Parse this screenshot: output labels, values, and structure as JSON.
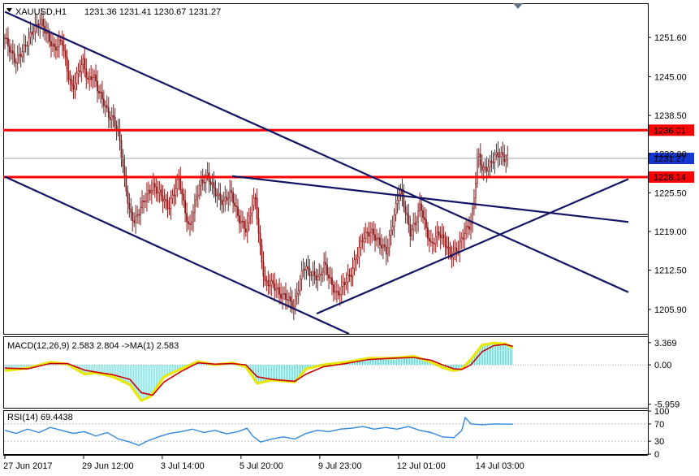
{
  "header": {
    "symbol": "XAUUSD,H1",
    "ohlc": "1231.36 1231.41 1230.67 1231.27"
  },
  "colors": {
    "bull": "#8b1a1a",
    "bear": "#8b1a1a",
    "trendline": "#141464",
    "level": "#ff0000",
    "price_label_bg": "#1536d1",
    "macd_hist": "#66cccc",
    "macd_signal": "#cc0000",
    "macd_line": "#e8e800",
    "rsi": "#3388dd"
  },
  "chart_data": [
    {
      "type": "candlestick",
      "name": "price",
      "ylim": [
        1201.8,
        1257.2
      ],
      "y_ticks": [
        "1251.60",
        "1245.00",
        "1238.50",
        "1232.00",
        "1225.50",
        "1219.00",
        "1212.50",
        "1205.90"
      ],
      "y_tick_values": [
        1251.6,
        1245.0,
        1238.5,
        1232.0,
        1225.5,
        1219.0,
        1212.5,
        1205.9
      ],
      "x_labels": [
        "27 Jun 2017",
        "29 Jun 12:00",
        "3 Jul 14:00",
        "5 Jul 20:00",
        "9 Jul 23:00",
        "12 Jul 01:00",
        "14 Jul 03:00"
      ],
      "x_label_index": [
        0,
        48,
        96,
        144,
        192,
        240,
        288
      ],
      "bars": 316,
      "current_price": "1231.27",
      "current_price_value": 1231.27,
      "levels": [
        {
          "label": "1236.01",
          "value": 1236.01
        },
        {
          "label": "1228.14",
          "value": 1228.14
        }
      ],
      "close_path": [
        [
          0,
          1251.5
        ],
        [
          8,
          1247.5
        ],
        [
          15,
          1249.8
        ],
        [
          22,
          1253.0
        ],
        [
          28,
          1254.2
        ],
        [
          33,
          1251.8
        ],
        [
          38,
          1249.6
        ],
        [
          44,
          1251.2
        ],
        [
          48,
          1246.0
        ],
        [
          52,
          1242.8
        ],
        [
          56,
          1245.5
        ],
        [
          60,
          1247.6
        ],
        [
          64,
          1244.2
        ],
        [
          68,
          1245.4
        ],
        [
          72,
          1242.6
        ],
        [
          76,
          1240.8
        ],
        [
          80,
          1238.4
        ],
        [
          84,
          1237.8
        ],
        [
          88,
          1235.0
        ],
        [
          92,
          1228.0
        ],
        [
          96,
          1222.2
        ],
        [
          100,
          1220.6
        ],
        [
          104,
          1222.8
        ],
        [
          108,
          1224.6
        ],
        [
          114,
          1226.6
        ],
        [
          120,
          1225.2
        ],
        [
          126,
          1223.0
        ],
        [
          130,
          1225.4
        ],
        [
          134,
          1228.0
        ],
        [
          138,
          1223.2
        ],
        [
          142,
          1219.2
        ],
        [
          146,
          1223.6
        ],
        [
          150,
          1226.8
        ],
        [
          156,
          1228.4
        ],
        [
          162,
          1225.6
        ],
        [
          168,
          1223.8
        ],
        [
          174,
          1225.6
        ],
        [
          180,
          1221.2
        ],
        [
          186,
          1219.2
        ],
        [
          190,
          1223.4
        ],
        [
          193,
          1224.6
        ],
        [
          196,
          1217.0
        ],
        [
          200,
          1210.4
        ],
        [
          206,
          1210.2
        ],
        [
          212,
          1208.4
        ],
        [
          218,
          1207.8
        ],
        [
          222,
          1206.2
        ],
        [
          226,
          1209.6
        ],
        [
          230,
          1213.2
        ],
        [
          236,
          1211.8
        ],
        [
          242,
          1211.2
        ],
        [
          246,
          1213.6
        ],
        [
          252,
          1209.8
        ],
        [
          256,
          1208.2
        ],
        [
          262,
          1210.6
        ],
        [
          266,
          1211.6
        ],
        [
          272,
          1215.6
        ],
        [
          276,
          1218.2
        ],
        [
          282,
          1219.0
        ],
        [
          288,
          1217.2
        ],
        [
          294,
          1215.6
        ],
        [
          300,
          1222.0
        ],
        [
          304,
          1226.4
        ],
        [
          308,
          1222.8
        ],
        [
          312,
          1218.8
        ],
        [
          316,
          1220.4
        ],
        [
          320,
          1223.6
        ],
        [
          324,
          1219.6
        ],
        [
          328,
          1216.6
        ],
        [
          334,
          1218.8
        ],
        [
          338,
          1217.6
        ],
        [
          343,
          1215.0
        ],
        [
          349,
          1216.2
        ],
        [
          354,
          1219.0
        ],
        [
          359,
          1220.4
        ],
        [
          362,
          1226.4
        ],
        [
          364,
          1232.2
        ],
        [
          368,
          1229.2
        ],
        [
          373,
          1230.0
        ],
        [
          377,
          1231.6
        ],
        [
          381,
          1232.0
        ],
        [
          385,
          1231.2
        ],
        [
          387,
          1231.27
        ]
      ],
      "trendlines": [
        {
          "from": [
            0,
            1255.9
          ],
          "to": [
            480,
            1208.8
          ]
        },
        {
          "from": [
            0,
            1228.2
          ],
          "to": [
            265,
            1201.8
          ]
        },
        {
          "from": [
            175,
            1228.3
          ],
          "to": [
            480,
            1220.6
          ]
        },
        {
          "from": [
            240,
            1205.2
          ],
          "to": [
            480,
            1227.8
          ]
        }
      ]
    },
    {
      "type": "histogram+line",
      "name": "MACD",
      "label": "MACD(12,26,9) 2.583 2.804  ->MA(1) 2.583",
      "ylim": [
        -6.5,
        4.2
      ],
      "y_ticks": [
        "3.369",
        "0.00",
        "-5.959"
      ],
      "y_tick_values": [
        3.369,
        0.0,
        -5.959
      ],
      "main_path": [
        [
          0,
          -0.9
        ],
        [
          20,
          -0.5
        ],
        [
          40,
          0.4
        ],
        [
          55,
          0.1
        ],
        [
          70,
          -1.4
        ],
        [
          80,
          -1.2
        ],
        [
          95,
          -1.8
        ],
        [
          110,
          -3.0
        ],
        [
          120,
          -5.4
        ],
        [
          128,
          -4.8
        ],
        [
          140,
          -1.8
        ],
        [
          155,
          -0.6
        ],
        [
          170,
          0.5
        ],
        [
          185,
          0.0
        ],
        [
          200,
          0.3
        ],
        [
          212,
          -0.3
        ],
        [
          222,
          -2.8
        ],
        [
          235,
          -2.3
        ],
        [
          255,
          -2.6
        ],
        [
          265,
          -0.6
        ],
        [
          280,
          0.0
        ],
        [
          300,
          0.4
        ],
        [
          320,
          1.0
        ],
        [
          340,
          1.0
        ],
        [
          360,
          1.3
        ],
        [
          375,
          0.4
        ],
        [
          385,
          -0.4
        ],
        [
          395,
          -0.9
        ],
        [
          402,
          -0.6
        ],
        [
          410,
          0.8
        ],
        [
          420,
          3.0
        ],
        [
          430,
          3.3
        ],
        [
          440,
          3.2
        ],
        [
          447,
          2.583
        ]
      ],
      "signal_path": [
        [
          0,
          -0.5
        ],
        [
          20,
          -0.6
        ],
        [
          40,
          0.2
        ],
        [
          55,
          0.2
        ],
        [
          70,
          -0.8
        ],
        [
          80,
          -1.1
        ],
        [
          95,
          -1.5
        ],
        [
          110,
          -2.2
        ],
        [
          120,
          -4.2
        ],
        [
          130,
          -4.6
        ],
        [
          140,
          -2.6
        ],
        [
          155,
          -1.0
        ],
        [
          170,
          0.3
        ],
        [
          185,
          0.1
        ],
        [
          200,
          0.2
        ],
        [
          212,
          0.0
        ],
        [
          222,
          -1.8
        ],
        [
          235,
          -2.2
        ],
        [
          255,
          -2.5
        ],
        [
          265,
          -1.4
        ],
        [
          280,
          -0.3
        ],
        [
          300,
          0.2
        ],
        [
          320,
          0.8
        ],
        [
          340,
          1.0
        ],
        [
          360,
          1.1
        ],
        [
          375,
          0.7
        ],
        [
          385,
          0.0
        ],
        [
          395,
          -0.6
        ],
        [
          402,
          -0.7
        ],
        [
          410,
          0.0
        ],
        [
          420,
          2.0
        ],
        [
          430,
          2.9
        ],
        [
          440,
          3.1
        ],
        [
          447,
          2.804
        ]
      ]
    },
    {
      "type": "line",
      "name": "RSI",
      "label": "RSI(14) 69.4438",
      "ylim": [
        0,
        100
      ],
      "y_ticks": [
        "100",
        "70",
        "30",
        "0"
      ],
      "y_tick_values": [
        100,
        70,
        30,
        0
      ],
      "levels": [
        70,
        30
      ],
      "path": [
        [
          0,
          55
        ],
        [
          10,
          48
        ],
        [
          20,
          58
        ],
        [
          30,
          50
        ],
        [
          40,
          62
        ],
        [
          50,
          55
        ],
        [
          60,
          48
        ],
        [
          70,
          52
        ],
        [
          80,
          42
        ],
        [
          90,
          50
        ],
        [
          100,
          35
        ],
        [
          110,
          28
        ],
        [
          118,
          20
        ],
        [
          125,
          30
        ],
        [
          135,
          40
        ],
        [
          145,
          48
        ],
        [
          155,
          52
        ],
        [
          165,
          58
        ],
        [
          175,
          50
        ],
        [
          185,
          55
        ],
        [
          195,
          47
        ],
        [
          205,
          52
        ],
        [
          213,
          60
        ],
        [
          218,
          42
        ],
        [
          225,
          28
        ],
        [
          235,
          35
        ],
        [
          245,
          40
        ],
        [
          255,
          35
        ],
        [
          265,
          48
        ],
        [
          275,
          55
        ],
        [
          285,
          52
        ],
        [
          295,
          58
        ],
        [
          305,
          60
        ],
        [
          315,
          64
        ],
        [
          325,
          58
        ],
        [
          335,
          62
        ],
        [
          345,
          58
        ],
        [
          355,
          64
        ],
        [
          365,
          55
        ],
        [
          375,
          50
        ],
        [
          385,
          40
        ],
        [
          395,
          38
        ],
        [
          402,
          55
        ],
        [
          405,
          85
        ],
        [
          410,
          70
        ],
        [
          420,
          68
        ],
        [
          430,
          70
        ],
        [
          447,
          69.4438
        ]
      ]
    }
  ]
}
